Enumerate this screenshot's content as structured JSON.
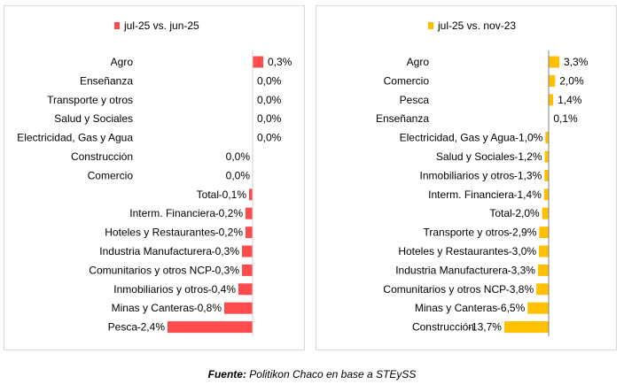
{
  "chart_data": [
    {
      "type": "bar",
      "orientation": "horizontal",
      "series": [
        {
          "name": "jul-25 vs. jun-25",
          "color": "#ff4b4b"
        }
      ],
      "categories": [
        "Agro",
        "Enseñanza",
        "Transporte y otros",
        "Salud y Sociales",
        "Electricidad, Gas y Agua",
        "Construcción",
        "Comercio",
        "Total",
        "Interm. Financiera",
        "Hoteles y Restaurantes",
        "Industria Manufacturera",
        "Comunitarios y otros NCP",
        "Inmobiliarios y otros",
        "Minas y Canteras",
        "Pesca"
      ],
      "values": [
        0.3,
        0.0,
        0.0,
        0.0,
        0.0,
        0.0,
        0.0,
        -0.1,
        -0.2,
        -0.2,
        -0.3,
        -0.3,
        -0.4,
        -0.8,
        -2.4
      ],
      "labels": [
        "0,3%",
        "0,0%",
        "0,0%",
        "0,0%",
        "0,0%",
        "0,0%",
        "0,0%",
        "-0,1%",
        "-0,2%",
        "-0,2%",
        "-0,3%",
        "-0,3%",
        "-0,4%",
        "-0,8%",
        "-2,4%"
      ],
      "label_side": [
        "right",
        "right",
        "right",
        "right",
        "right",
        "left",
        "left",
        "left",
        "left",
        "left",
        "left",
        "left",
        "left",
        "left",
        "left"
      ],
      "xlim": [
        -2.4,
        0.45
      ],
      "legend_position": "top",
      "grid": false
    },
    {
      "type": "bar",
      "orientation": "horizontal",
      "series": [
        {
          "name": "jul-25 vs. nov-23",
          "color": "#ffc000"
        }
      ],
      "categories": [
        "Agro",
        "Comercio",
        "Pesca",
        "Enseñanza",
        "Electricidad, Gas y Agua",
        "Salud y Sociales",
        "Inmobiliarios y otros",
        "Interm. Financiera",
        "Total",
        "Transporte y otros",
        "Hoteles y Restaurantes",
        "Industria Manufacturera",
        "Comunitarios y otros NCP",
        "Minas y Canteras",
        "Construcción"
      ],
      "values": [
        3.3,
        2.0,
        1.4,
        0.1,
        -1.0,
        -1.2,
        -1.3,
        -1.4,
        -2.0,
        -2.9,
        -3.0,
        -3.3,
        -3.8,
        -6.5,
        -13.7
      ],
      "labels": [
        "3,3%",
        "2,0%",
        "1,4%",
        "0,1%",
        "-1,0%",
        "-1,2%",
        "-1,3%",
        "-1,4%",
        "-2,0%",
        "-2,9%",
        "-3,0%",
        "-3,3%",
        "-3,8%",
        "-6,5%",
        "-13,7%"
      ],
      "label_side": [
        "right",
        "right",
        "right",
        "right",
        "left",
        "left",
        "left",
        "left",
        "left",
        "left",
        "left",
        "left",
        "left",
        "left",
        "left"
      ],
      "xlim": [
        -13.7,
        3.3
      ],
      "legend_position": "top",
      "grid": false
    }
  ],
  "footer": {
    "source_label": "Fuente:",
    "source_text": " Politikon Chaco en base a STEySS"
  }
}
